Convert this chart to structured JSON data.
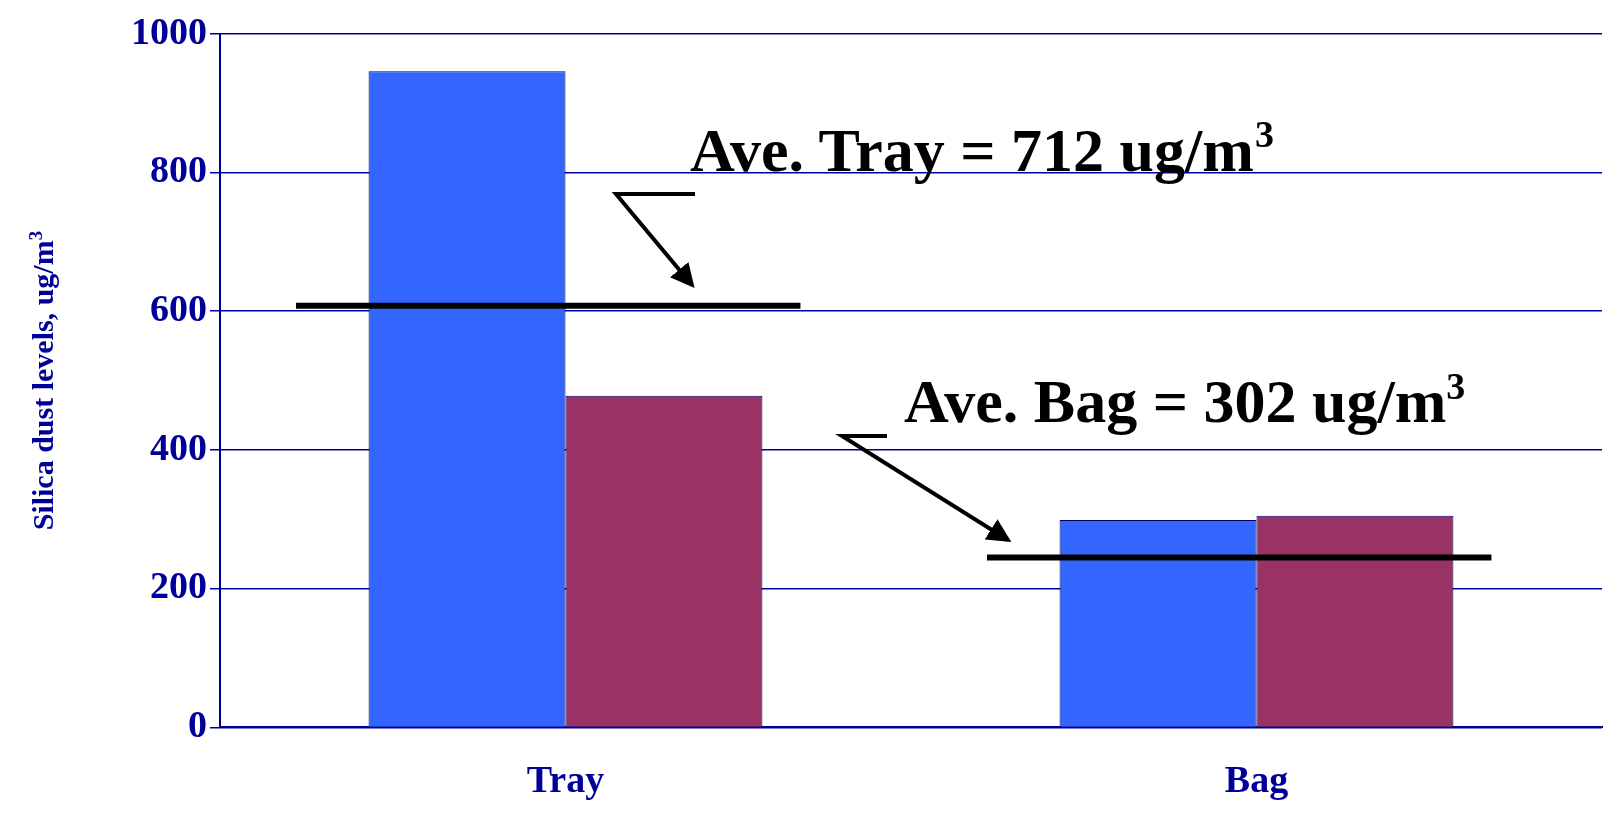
{
  "chart_data": {
    "type": "bar",
    "ylabel": "Silica dust levels, ug/m$^{3}$",
    "categories": [
      "Tray",
      "Bag"
    ],
    "series": [
      {
        "color": "#3366ff",
        "values": [
          946,
          299
        ]
      },
      {
        "color": "#993366",
        "values": [
          478,
          305
        ]
      }
    ],
    "ylim": [
      0,
      1000
    ],
    "yticks": [
      0,
      200,
      400,
      600,
      800,
      1000
    ],
    "grid": "y",
    "legend": false,
    "ref_lines": [
      {
        "axis": "y",
        "value": 608,
        "color": "#000000"
      },
      {
        "axis": "y",
        "value": 245,
        "color": "#000000"
      }
    ],
    "annotations": [
      "Ave. Tray = 712 ug/m$^{3}$",
      "Ave. Bag = 302 ug/m$^{3}$"
    ]
  }
}
